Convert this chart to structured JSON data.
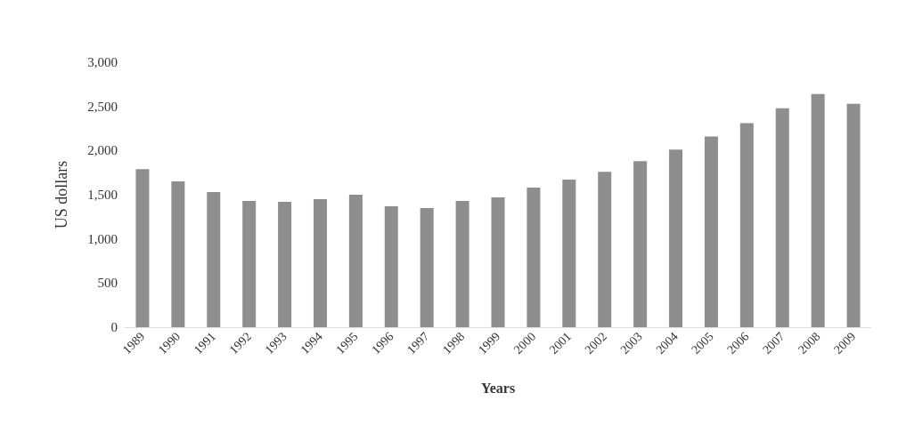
{
  "chart_data": {
    "type": "bar",
    "xlabel": "Years",
    "ylabel": "US dollars",
    "categories": [
      "1989",
      "1990",
      "1991",
      "1992",
      "1993",
      "1994",
      "1995",
      "1996",
      "1997",
      "1998",
      "1999",
      "2000",
      "2001",
      "2002",
      "2003",
      "2004",
      "2005",
      "2006",
      "2007",
      "2008",
      "2009"
    ],
    "values": [
      1790,
      1650,
      1530,
      1430,
      1420,
      1450,
      1500,
      1370,
      1350,
      1430,
      1470,
      1580,
      1670,
      1760,
      1880,
      2010,
      2160,
      2310,
      2480,
      2640,
      2530
    ],
    "color": "#8e8e8e",
    "ylim": [
      0,
      3000
    ],
    "yticks": [
      0,
      500,
      {
        "value": 1000,
        "label": "1,000"
      },
      {
        "value": 1500,
        "label": "1,500"
      },
      {
        "value": 2000,
        "label": "2,000"
      },
      {
        "value": 2500,
        "label": "2,500"
      },
      {
        "value": 3000,
        "label": "3,000"
      }
    ],
    "grid": false
  }
}
